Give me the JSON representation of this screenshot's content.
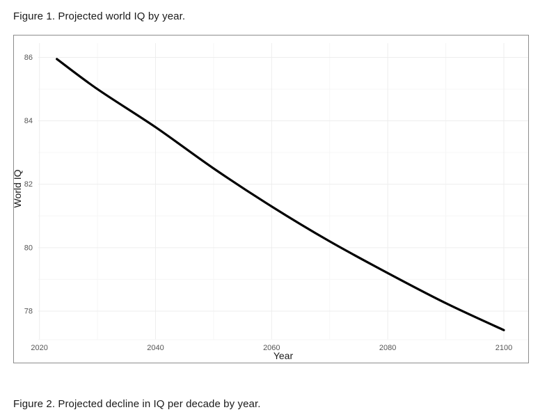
{
  "figures": {
    "figure1_caption": "Figure 1. Projected world IQ by year.",
    "figure2_caption": "Figure 2. Projected decline in IQ per decade by year."
  },
  "chart_data": {
    "type": "line",
    "title": "Projected world IQ by year",
    "xlabel": "Year",
    "ylabel": "World IQ",
    "x_ticks": [
      2020,
      2040,
      2060,
      2080,
      2100
    ],
    "x_minor_ticks": [
      2030,
      2050,
      2070,
      2090
    ],
    "y_ticks": [
      78,
      80,
      82,
      84,
      86
    ],
    "y_minor_ticks": [
      79,
      81,
      83,
      85
    ],
    "xlim": [
      2019.8,
      2104.2
    ],
    "ylim": [
      77.1,
      86.45
    ],
    "grid": "major+minor",
    "legend": "none",
    "series": [
      {
        "name": "Projected world IQ",
        "color": "#000000",
        "line_width": 3.2,
        "points": [
          [
            2023,
            85.95
          ],
          [
            2030,
            85.0
          ],
          [
            2040,
            83.8
          ],
          [
            2050,
            82.5
          ],
          [
            2060,
            81.3
          ],
          [
            2070,
            80.2
          ],
          [
            2080,
            79.2
          ],
          [
            2090,
            78.25
          ],
          [
            2100,
            77.4
          ]
        ]
      }
    ],
    "colors": {
      "major_grid": "#ededed",
      "minor_grid": "#f6f6f6",
      "tick_label": "#555555",
      "axis_title": "#1a1a1a",
      "frame_border": "#8c8c8c",
      "panel_bg": "#ffffff"
    }
  }
}
